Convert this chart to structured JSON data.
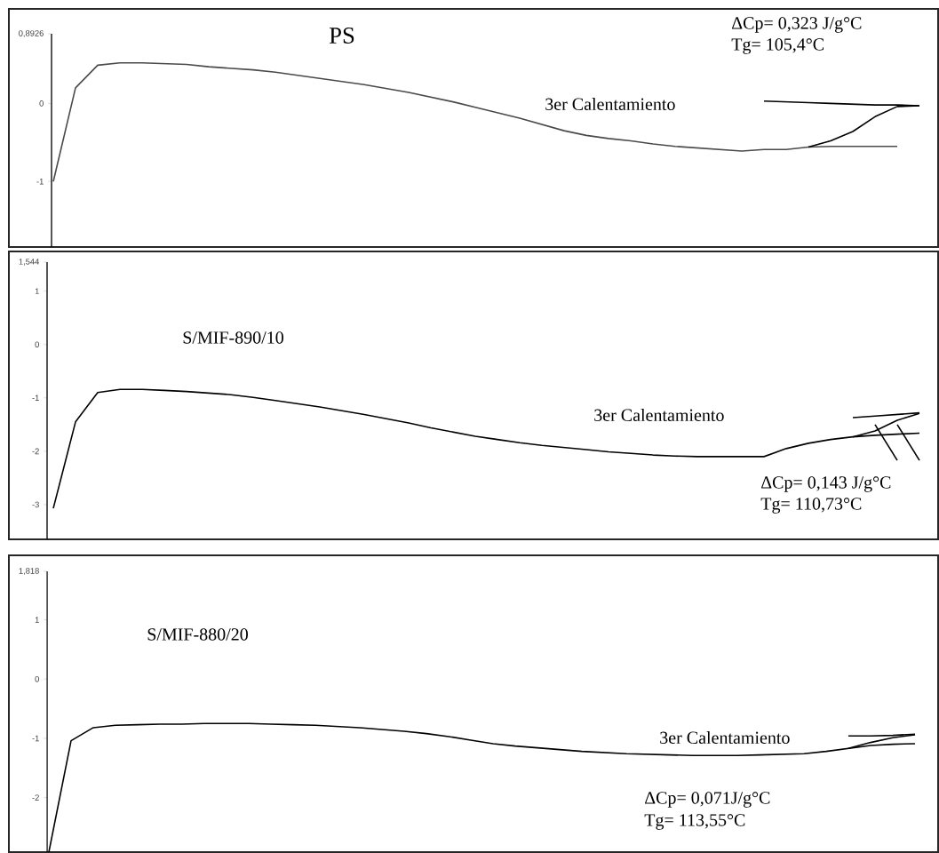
{
  "chart_data": [
    {
      "type": "line",
      "title": "PS",
      "annotations": [
        "ΔCp= 0,323 J/g°C",
        "Tg= 105,4°C",
        "3er Calentamiento"
      ],
      "ylim": [
        -1.84,
        0.8926
      ],
      "yticks": [
        {
          "value": 0.8926,
          "label": "0,8926"
        },
        0,
        -1
      ],
      "tick_labels": "y",
      "categories": [
        null,
        null,
        null,
        null,
        null,
        null,
        null,
        null,
        null,
        null,
        null,
        null,
        null,
        null,
        null,
        null,
        null,
        null,
        null,
        null,
        null,
        null,
        null,
        null,
        null,
        null,
        null,
        null,
        null,
        null,
        null,
        null,
        null,
        null,
        null,
        null,
        null,
        null,
        null,
        null
      ],
      "series": [
        {
          "color": "#4a4a4a",
          "values": [
            -1.0,
            0.2,
            0.49,
            0.52,
            0.52,
            0.51,
            0.5,
            0.47,
            0.45,
            0.43,
            0.4,
            0.36,
            0.32,
            0.28,
            0.24,
            0.19,
            0.14,
            0.08,
            0.02,
            -0.05,
            -0.12,
            -0.19,
            -0.27,
            -0.35,
            -0.41,
            -0.45,
            -0.48,
            -0.52,
            -0.55,
            -0.57,
            -0.59,
            -0.61,
            -0.59,
            -0.59,
            -0.56,
            -0.55,
            -0.55,
            -0.55,
            -0.55,
            null
          ]
        },
        {
          "color": "#000000",
          "values": [
            null,
            null,
            null,
            null,
            null,
            null,
            null,
            null,
            null,
            null,
            null,
            null,
            null,
            null,
            null,
            null,
            null,
            null,
            null,
            null,
            null,
            null,
            null,
            null,
            null,
            null,
            null,
            null,
            null,
            null,
            null,
            null,
            null,
            null,
            -0.56,
            -0.48,
            -0.36,
            -0.17,
            -0.04,
            -0.03
          ]
        },
        {
          "color": "#000000",
          "values": [
            null,
            null,
            null,
            null,
            null,
            null,
            null,
            null,
            null,
            null,
            null,
            null,
            null,
            null,
            null,
            null,
            null,
            null,
            null,
            null,
            null,
            null,
            null,
            null,
            null,
            null,
            null,
            null,
            null,
            null,
            null,
            null,
            0.03,
            0.02,
            0.01,
            0.0,
            -0.01,
            -0.02,
            -0.02,
            -0.03
          ]
        }
      ]
    },
    {
      "type": "line",
      "title": "S/MIF-890/10",
      "annotations": [
        "3er Calentamiento",
        "ΔCp= 0,143 J/g°C",
        "Tg= 110,73°C"
      ],
      "ylim": [
        -3.65,
        1.544
      ],
      "yticks": [
        {
          "value": 1.544,
          "label": "1,544"
        },
        1,
        0,
        -1,
        -2,
        -3
      ],
      "tick_labels": "y",
      "categories": [
        null,
        null,
        null,
        null,
        null,
        null,
        null,
        null,
        null,
        null,
        null,
        null,
        null,
        null,
        null,
        null,
        null,
        null,
        null,
        null,
        null,
        null,
        null,
        null,
        null,
        null,
        null,
        null,
        null,
        null,
        null,
        null,
        null,
        null,
        null,
        null,
        null,
        null,
        null,
        null
      ],
      "series": [
        {
          "color": "#000000",
          "values": [
            -3.07,
            -1.45,
            -0.9,
            -0.84,
            -0.84,
            -0.86,
            -0.88,
            -0.91,
            -0.94,
            -0.99,
            -1.05,
            -1.11,
            -1.17,
            -1.24,
            -1.31,
            -1.39,
            -1.47,
            -1.56,
            -1.64,
            -1.72,
            -1.78,
            -1.84,
            -1.89,
            -1.93,
            -1.97,
            -2.01,
            -2.04,
            -2.07,
            -2.09,
            -2.1,
            -2.1,
            -2.1,
            -2.1,
            -1.95,
            -1.85,
            -1.78,
            -1.73,
            -1.7,
            -1.68,
            -1.66
          ]
        },
        {
          "color": "#000000",
          "values": [
            null,
            null,
            null,
            null,
            null,
            null,
            null,
            null,
            null,
            null,
            null,
            null,
            null,
            null,
            null,
            null,
            null,
            null,
            null,
            null,
            null,
            null,
            null,
            null,
            null,
            null,
            null,
            null,
            null,
            null,
            null,
            null,
            null,
            null,
            null,
            null,
            -1.73,
            -1.62,
            -1.42,
            -1.29
          ]
        },
        {
          "color": "#000000",
          "values": [
            null,
            null,
            null,
            null,
            null,
            null,
            null,
            null,
            null,
            null,
            null,
            null,
            null,
            null,
            null,
            null,
            null,
            null,
            null,
            null,
            null,
            null,
            null,
            null,
            null,
            null,
            null,
            null,
            null,
            null,
            null,
            null,
            null,
            null,
            null,
            null,
            -1.37,
            -1.34,
            -1.31,
            -1.28
          ]
        },
        {
          "color": "#000000",
          "values": [
            null,
            null,
            null,
            null,
            null,
            null,
            null,
            null,
            null,
            null,
            null,
            null,
            null,
            null,
            null,
            null,
            null,
            null,
            null,
            null,
            null,
            null,
            null,
            null,
            null,
            null,
            null,
            null,
            null,
            null,
            null,
            null,
            null,
            null,
            null,
            null,
            null,
            -1.5,
            -2.17,
            null
          ]
        },
        {
          "color": "#000000",
          "values": [
            null,
            null,
            null,
            null,
            null,
            null,
            null,
            null,
            null,
            null,
            null,
            null,
            null,
            null,
            null,
            null,
            null,
            null,
            null,
            null,
            null,
            null,
            null,
            null,
            null,
            null,
            null,
            null,
            null,
            null,
            null,
            null,
            null,
            null,
            null,
            null,
            null,
            null,
            -1.5,
            -2.17
          ]
        }
      ]
    },
    {
      "type": "line",
      "title": "S/MIF-880/20",
      "annotations": [
        "3er Calentamiento",
        "ΔCp= 0,071J/g°C",
        "Tg= 113,55°C"
      ],
      "ylim": [
        -2.92,
        1.818
      ],
      "yticks": [
        {
          "value": 1.818,
          "label": "1,818"
        },
        1,
        0,
        -1,
        -2
      ],
      "tick_labels": "y",
      "categories": [
        null,
        null,
        null,
        null,
        null,
        null,
        null,
        null,
        null,
        null,
        null,
        null,
        null,
        null,
        null,
        null,
        null,
        null,
        null,
        null,
        null,
        null,
        null,
        null,
        null,
        null,
        null,
        null,
        null,
        null,
        null,
        null,
        null,
        null,
        null,
        null,
        null,
        null,
        null,
        null
      ],
      "series": [
        {
          "color": "#000000",
          "values": [
            -2.92,
            -1.04,
            -0.82,
            -0.78,
            -0.77,
            -0.76,
            -0.76,
            -0.75,
            -0.75,
            -0.75,
            -0.76,
            -0.77,
            -0.78,
            -0.8,
            -0.82,
            -0.85,
            -0.88,
            -0.92,
            -0.97,
            -1.03,
            -1.09,
            -1.13,
            -1.16,
            -1.19,
            -1.22,
            -1.24,
            -1.26,
            -1.27,
            -1.28,
            -1.29,
            -1.29,
            -1.29,
            -1.28,
            -1.27,
            -1.26,
            -1.22,
            -1.17,
            -1.12,
            -1.1,
            -1.09
          ]
        },
        {
          "color": "#000000",
          "values": [
            null,
            null,
            null,
            null,
            null,
            null,
            null,
            null,
            null,
            null,
            null,
            null,
            null,
            null,
            null,
            null,
            null,
            null,
            null,
            null,
            null,
            null,
            null,
            null,
            null,
            null,
            null,
            null,
            null,
            null,
            null,
            null,
            null,
            null,
            null,
            null,
            -1.17,
            -1.07,
            -0.99,
            -0.94
          ]
        },
        {
          "color": "#000000",
          "values": [
            null,
            null,
            null,
            null,
            null,
            null,
            null,
            null,
            null,
            null,
            null,
            null,
            null,
            null,
            null,
            null,
            null,
            null,
            null,
            null,
            null,
            null,
            null,
            null,
            null,
            null,
            null,
            null,
            null,
            null,
            null,
            null,
            null,
            null,
            null,
            null,
            -0.96,
            -0.96,
            -0.95,
            -0.93
          ]
        }
      ]
    }
  ]
}
